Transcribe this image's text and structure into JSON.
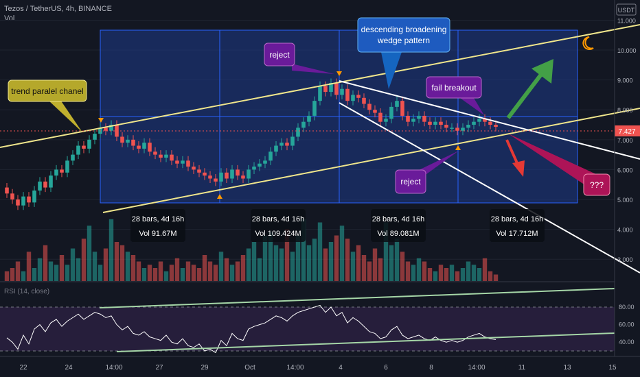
{
  "header": {
    "symbol": "Tezos / TetherUS, 4h, BINANCE",
    "volume_label": "Vol",
    "currency_badge": "USDT"
  },
  "rsi_label": "RSI (14, close)",
  "price": {
    "current": "7.427",
    "axis_ticks": [
      "11.000",
      "10.000",
      "9.000",
      "8.000",
      "7.000",
      "6.000",
      "5.000",
      "4.000",
      "3.000"
    ]
  },
  "rsi_axis": [
    "80.00",
    "60.00",
    "40.00"
  ],
  "time_axis": [
    "22",
    "24",
    "14:00",
    "27",
    "29",
    "Oct",
    "14:00",
    "4",
    "6",
    "8",
    "14:00",
    "11",
    "13",
    "15"
  ],
  "annotations": {
    "trend_channel": "trend paralel chanel",
    "wedge": "descending broadening wedge pattern",
    "reject_top": "reject",
    "reject_bottom": "reject",
    "fail_breakout": "fail breakout",
    "question": "???"
  },
  "range_stats": [
    {
      "bars": "28 bars, 4d 16h",
      "vol": "Vol 91.67M"
    },
    {
      "bars": "28 bars, 4d 16h",
      "vol": "Vol 109.424M"
    },
    {
      "bars": "28 bars, 4d 16h",
      "vol": "Vol 89.081M"
    },
    {
      "bars": "28 bars, 4d 16h",
      "vol": "Vol 17.712M"
    }
  ],
  "colors": {
    "background": "#131722",
    "up": "#26a69a",
    "down": "#ef5350",
    "channel": "#f0e68c",
    "wedge": "#ffffff",
    "range_fill": "#1e3a8a",
    "rsi_line": "#ffffff",
    "rsi_trend": "#a5d6a7",
    "arrow_up": "#43a047",
    "arrow_down": "#e53935"
  },
  "chart_data": {
    "type": "candlestick",
    "ylim": [
      2.5,
      11.4
    ],
    "price_closes": [
      5.2,
      5.0,
      4.8,
      5.1,
      4.9,
      5.3,
      5.6,
      5.4,
      5.8,
      6.0,
      5.9,
      6.3,
      6.5,
      6.8,
      6.7,
      7.0,
      7.2,
      7.4,
      7.3,
      7.5,
      7.1,
      6.9,
      7.0,
      6.8,
      6.7,
      6.9,
      6.6,
      6.5,
      6.4,
      6.5,
      6.3,
      6.2,
      6.3,
      6.1,
      6.0,
      5.9,
      5.8,
      5.7,
      5.6,
      5.9,
      5.7,
      6.0,
      5.8,
      5.7,
      6.0,
      6.1,
      6.2,
      6.3,
      6.6,
      6.8,
      6.9,
      6.8,
      7.1,
      7.4,
      7.6,
      7.8,
      8.3,
      8.8,
      8.6,
      8.9,
      8.5,
      8.7,
      8.3,
      8.5,
      8.4,
      8.2,
      8.0,
      7.9,
      7.6,
      7.7,
      8.1,
      8.3,
      7.8,
      7.6,
      7.7,
      7.8,
      7.6,
      7.5,
      7.6,
      7.5,
      7.4,
      7.4,
      7.3,
      7.4,
      7.5,
      7.6,
      7.7,
      7.6,
      7.5,
      7.43
    ],
    "volume": [
      2.8,
      2.9,
      3.1,
      2.8,
      3.4,
      2.9,
      3.2,
      3.6,
      3.1,
      3.0,
      3.3,
      3.0,
      3.5,
      3.2,
      3.8,
      4.2,
      3.4,
      3.0,
      3.5,
      4.4,
      3.7,
      3.6,
      3.4,
      3.3,
      3.1,
      2.9,
      3.0,
      2.9,
      3.1,
      2.8,
      3.0,
      3.2,
      2.9,
      3.1,
      3.0,
      2.9,
      3.3,
      3.1,
      3.0,
      3.4,
      3.2,
      3.0,
      3.1,
      3.3,
      3.5,
      3.7,
      3.2,
      3.9,
      4.0,
      3.6,
      3.5,
      4.1,
      3.4,
      3.9,
      4.4,
      3.6,
      3.8,
      4.3,
      3.5,
      3.7,
      3.9,
      4.2,
      3.8,
      3.4,
      3.6,
      3.3,
      3.1,
      3.5,
      3.2,
      4.3,
      3.6,
      3.8,
      3.4,
      3.1,
      3.0,
      3.2,
      3.1,
      2.9,
      2.8,
      3.0,
      2.9,
      3.0,
      2.8,
      2.9,
      3.1,
      3.0,
      2.9,
      3.2,
      2.8,
      2.7
    ],
    "rsi": [
      45,
      40,
      32,
      48,
      38,
      55,
      60,
      52,
      62,
      66,
      58,
      64,
      68,
      72,
      66,
      70,
      74,
      72,
      68,
      70,
      60,
      54,
      58,
      50,
      48,
      52,
      46,
      44,
      42,
      48,
      40,
      38,
      44,
      36,
      34,
      38,
      30,
      32,
      28,
      42,
      36,
      50,
      44,
      42,
      55,
      58,
      60,
      62,
      66,
      70,
      68,
      64,
      70,
      74,
      76,
      78,
      80,
      82,
      74,
      80,
      70,
      74,
      62,
      68,
      64,
      58,
      52,
      50,
      44,
      46,
      54,
      58,
      48,
      44,
      46,
      48,
      44,
      42,
      46,
      42,
      40,
      42,
      40,
      42,
      46,
      48,
      50,
      46,
      44,
      43
    ]
  }
}
